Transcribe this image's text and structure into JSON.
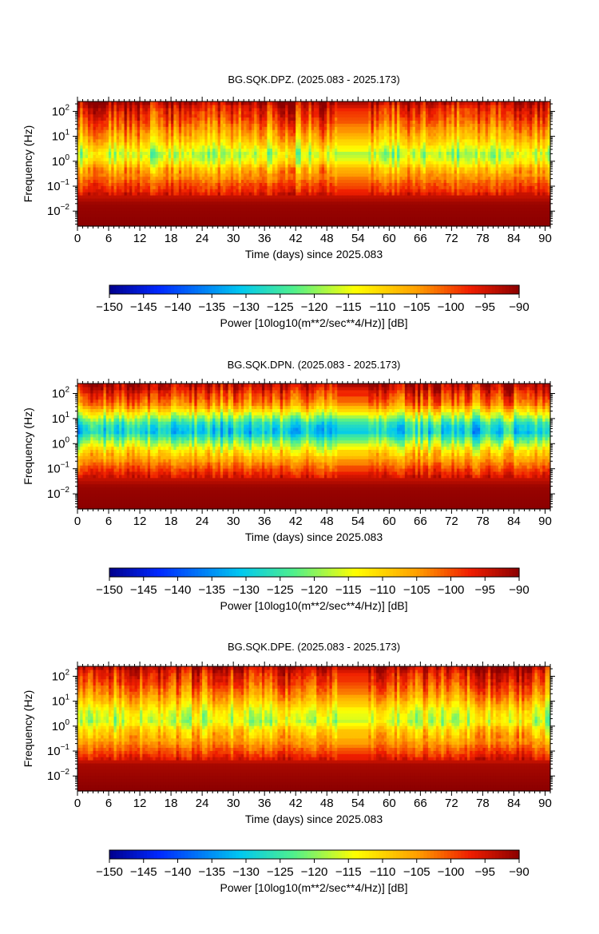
{
  "chart_data": [
    {
      "type": "heatmap",
      "title": "BG.SQK.DPZ. (2025.083 - 2025.173)",
      "xlabel": "Time (days) since 2025.083",
      "ylabel": "Frequency (Hz)",
      "xlim": [
        0,
        91
      ],
      "ylim": [
        0.0025,
        250
      ],
      "y_scale": "log",
      "x_ticks": [
        "0",
        "6",
        "12",
        "18",
        "24",
        "30",
        "36",
        "42",
        "48",
        "54",
        "60",
        "66",
        "72",
        "78",
        "84",
        "90"
      ],
      "y_ticks": [
        {
          "value": 100,
          "base": "10",
          "exp": "2"
        },
        {
          "value": 10,
          "base": "10",
          "exp": "1"
        },
        {
          "value": 1,
          "base": "10",
          "exp": "0"
        },
        {
          "value": 0.1,
          "base": "10",
          "exp": "−1"
        },
        {
          "value": 0.01,
          "base": "10",
          "exp": "−2"
        }
      ],
      "colorbar": {
        "label": "Power [10log10(m**2/sec**4/Hz)] [dB]",
        "range": [
          -150,
          -90
        ],
        "ticks": [
          "−150",
          "−145",
          "−140",
          "−135",
          "−130",
          "−125",
          "−120",
          "−115",
          "−110",
          "−105",
          "−100",
          "−95",
          "−90"
        ]
      },
      "gap_days": [
        50,
        56
      ],
      "profile": [
        {
          "freq": 200,
          "db": -93
        },
        {
          "freq": 150,
          "db": -96
        },
        {
          "freq": 60,
          "db": -99
        },
        {
          "freq": 25,
          "db": -103
        },
        {
          "freq": 10,
          "db": -107
        },
        {
          "freq": 5,
          "db": -111
        },
        {
          "freq": 2,
          "db": -118
        },
        {
          "freq": 1,
          "db": -114
        },
        {
          "freq": 0.5,
          "db": -107
        },
        {
          "freq": 0.2,
          "db": -103
        },
        {
          "freq": 0.12,
          "db": -100
        },
        {
          "freq": 0.07,
          "db": -98
        },
        {
          "freq": 0.04,
          "db": -94
        },
        {
          "freq": 0.02,
          "db": -91
        },
        {
          "freq": 0.003,
          "db": -90
        }
      ]
    },
    {
      "type": "heatmap",
      "title": "BG.SQK.DPN. (2025.083 - 2025.173)",
      "xlabel": "Time (days) since 2025.083",
      "ylabel": "Frequency (Hz)",
      "xlim": [
        0,
        91
      ],
      "ylim": [
        0.0025,
        250
      ],
      "y_scale": "log",
      "x_ticks": [
        "0",
        "6",
        "12",
        "18",
        "24",
        "30",
        "36",
        "42",
        "48",
        "54",
        "60",
        "66",
        "72",
        "78",
        "84",
        "90"
      ],
      "y_ticks": [
        {
          "value": 100,
          "base": "10",
          "exp": "2"
        },
        {
          "value": 10,
          "base": "10",
          "exp": "1"
        },
        {
          "value": 1,
          "base": "10",
          "exp": "0"
        },
        {
          "value": 0.1,
          "base": "10",
          "exp": "−1"
        },
        {
          "value": 0.01,
          "base": "10",
          "exp": "−2"
        }
      ],
      "colorbar": {
        "label": "Power [10log10(m**2/sec**4/Hz)] [dB]",
        "range": [
          -150,
          -90
        ],
        "ticks": [
          "−150",
          "−145",
          "−140",
          "−135",
          "−130",
          "−125",
          "−120",
          "−115",
          "−110",
          "−105",
          "−100",
          "−95",
          "−90"
        ]
      },
      "gap_days": [
        50,
        56
      ],
      "profile": [
        {
          "freq": 200,
          "db": -93
        },
        {
          "freq": 120,
          "db": -97
        },
        {
          "freq": 40,
          "db": -103
        },
        {
          "freq": 15,
          "db": -115
        },
        {
          "freq": 6,
          "db": -127
        },
        {
          "freq": 3,
          "db": -130
        },
        {
          "freq": 1.5,
          "db": -122
        },
        {
          "freq": 0.6,
          "db": -112
        },
        {
          "freq": 0.2,
          "db": -104
        },
        {
          "freq": 0.08,
          "db": -98
        },
        {
          "freq": 0.04,
          "db": -94
        },
        {
          "freq": 0.02,
          "db": -91
        },
        {
          "freq": 0.003,
          "db": -90
        }
      ]
    },
    {
      "type": "heatmap",
      "title": "BG.SQK.DPE. (2025.083 - 2025.173)",
      "xlabel": "Time (days) since 2025.083",
      "ylabel": "Frequency (Hz)",
      "xlim": [
        0,
        91
      ],
      "ylim": [
        0.0025,
        250
      ],
      "y_scale": "log",
      "x_ticks": [
        "0",
        "6",
        "12",
        "18",
        "24",
        "30",
        "36",
        "42",
        "48",
        "54",
        "60",
        "66",
        "72",
        "78",
        "84",
        "90"
      ],
      "y_ticks": [
        {
          "value": 100,
          "base": "10",
          "exp": "2"
        },
        {
          "value": 10,
          "base": "10",
          "exp": "1"
        },
        {
          "value": 1,
          "base": "10",
          "exp": "0"
        },
        {
          "value": 0.1,
          "base": "10",
          "exp": "−1"
        },
        {
          "value": 0.01,
          "base": "10",
          "exp": "−2"
        }
      ],
      "colorbar": {
        "label": "Power [10log10(m**2/sec**4/Hz)] [dB]",
        "range": [
          -150,
          -90
        ],
        "ticks": [
          "−150",
          "−145",
          "−140",
          "−135",
          "−130",
          "−125",
          "−120",
          "−115",
          "−110",
          "−105",
          "−100",
          "−95",
          "−90"
        ]
      },
      "gap_days": [
        50,
        56
      ],
      "profile": [
        {
          "freq": 200,
          "db": -93
        },
        {
          "freq": 150,
          "db": -96
        },
        {
          "freq": 60,
          "db": -99
        },
        {
          "freq": 25,
          "db": -103
        },
        {
          "freq": 10,
          "db": -108
        },
        {
          "freq": 4,
          "db": -114
        },
        {
          "freq": 1.5,
          "db": -117
        },
        {
          "freq": 0.8,
          "db": -110
        },
        {
          "freq": 0.3,
          "db": -106
        },
        {
          "freq": 0.12,
          "db": -101
        },
        {
          "freq": 0.06,
          "db": -97
        },
        {
          "freq": 0.03,
          "db": -92
        },
        {
          "freq": 0.003,
          "db": -90
        }
      ]
    }
  ]
}
